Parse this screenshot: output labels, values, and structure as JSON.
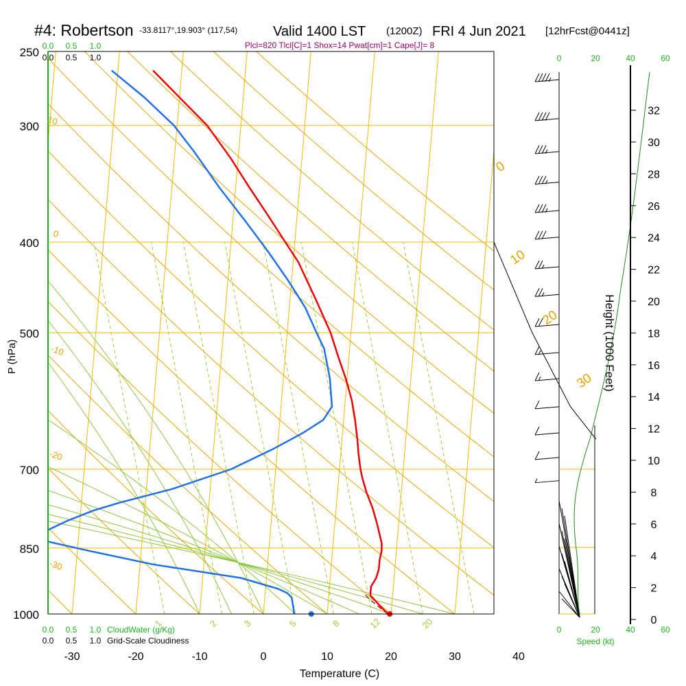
{
  "header": {
    "station": "#4: Robertson",
    "coords": "-33.8117°,19.903° (117,54)",
    "valid": "Valid 1400 LST",
    "z_time": "(1200Z)",
    "date": "FRI 4 Jun 2021",
    "forecast": "[12hrFcst@0441z]",
    "params": "Plcl=820 Tlcl[C]=1 Shox=14 Pwat[cm]=1 Cape[J]= 8"
  },
  "colors": {
    "isobar": "#f5b800",
    "dry_adiabat": "#e3a400",
    "moist_adiabat": "#8cc63f",
    "mixing_ratio": "#9acd32",
    "temperature": "#ee0000",
    "dewpoint": "#1e6fe8",
    "parcel": "#cc0000",
    "green_text": "#19b21a",
    "black": "#000000",
    "param_text": "#990066"
  },
  "chart_data": {
    "type": "line",
    "subtype": "skew-T log-P sounding",
    "xlabel": "Temperature (C)",
    "ylabel": "P (hPa)",
    "right_label": "Height (1000 Feet)",
    "x_ticks": [
      -30,
      -20,
      -10,
      0,
      10,
      20,
      30,
      40
    ],
    "p_ticks": [
      250,
      300,
      400,
      500,
      700,
      850,
      1000
    ],
    "height_ticks": [
      0,
      2,
      4,
      6,
      8,
      10,
      12,
      14,
      16,
      18,
      20,
      22,
      24,
      26,
      28,
      30,
      32
    ],
    "cloud_scale_top": [
      "0.0",
      "0.5",
      "1.0"
    ],
    "cloud_scale_bottom": [
      "0.0",
      "0.5",
      "1.0"
    ],
    "cloudwater_label": "CloudWater (g/Kg)",
    "cloudiness_label": "Grid-Scale Cloudiness",
    "speed_ticks": [
      "0",
      "20",
      "40",
      "60"
    ],
    "speed_label": "Speed (kt)",
    "dry_adiabat_labels": [
      "10",
      "0",
      "-10",
      "-20",
      "-30"
    ],
    "moist_adiabat_labels": [
      "0",
      "10",
      "20",
      "30"
    ],
    "mixing_ratio_labels": [
      "1",
      "2",
      "3",
      "5",
      "8",
      "12",
      "20"
    ],
    "series": [
      {
        "key": "temperature",
        "points": [
          [
            19.5,
            1000
          ],
          [
            18.5,
            985
          ],
          [
            17.5,
            970
          ],
          [
            16.5,
            955
          ],
          [
            16.5,
            935
          ],
          [
            17.2,
            915
          ],
          [
            17.5,
            895
          ],
          [
            17.5,
            875
          ],
          [
            17.7,
            855
          ],
          [
            17.6,
            840
          ],
          [
            17.1,
            820
          ],
          [
            16.6,
            800
          ],
          [
            15.7,
            770
          ],
          [
            14.5,
            740
          ],
          [
            13.7,
            715
          ],
          [
            13.3,
            700
          ],
          [
            12.8,
            675
          ],
          [
            12.4,
            650
          ],
          [
            11.8,
            620
          ],
          [
            11.0,
            590
          ],
          [
            9.8,
            560
          ],
          [
            8.3,
            530
          ],
          [
            6.8,
            500
          ],
          [
            4.0,
            460
          ],
          [
            0.8,
            420
          ],
          [
            -1.5,
            400
          ],
          [
            -4.5,
            375
          ],
          [
            -7.8,
            350
          ],
          [
            -11.2,
            325
          ],
          [
            -15.3,
            300
          ],
          [
            -20.0,
            280
          ],
          [
            -24.5,
            262
          ]
        ]
      },
      {
        "key": "dewpoint",
        "points": [
          [
            4.8,
            1000
          ],
          [
            4.7,
            990
          ],
          [
            4.2,
            960
          ],
          [
            3.5,
            950
          ],
          [
            2.0,
            940
          ],
          [
            -4.0,
            915
          ],
          [
            -18.0,
            885
          ],
          [
            -28.5,
            855
          ],
          [
            -37.0,
            830
          ],
          [
            -36.0,
            820
          ],
          [
            -32.0,
            795
          ],
          [
            -28.0,
            775
          ],
          [
            -24.0,
            760
          ],
          [
            -16.0,
            735
          ],
          [
            -7.0,
            700
          ],
          [
            -0.5,
            665
          ],
          [
            3.8,
            640
          ],
          [
            6.8,
            620
          ],
          [
            8.0,
            600
          ],
          [
            7.3,
            560
          ],
          [
            6.0,
            520
          ],
          [
            4.6,
            500
          ],
          [
            2.5,
            470
          ],
          [
            -0.5,
            440
          ],
          [
            -4.0,
            410
          ],
          [
            -8.0,
            380
          ],
          [
            -12.5,
            350
          ],
          [
            -17.0,
            320
          ],
          [
            -20.5,
            300
          ],
          [
            -25.5,
            280
          ],
          [
            -31.0,
            262
          ]
        ]
      },
      {
        "key": "parcel",
        "points": [
          [
            19.5,
            1000
          ],
          [
            18.2,
            985
          ],
          [
            16.5,
            965
          ],
          [
            15.3,
            948
          ]
        ]
      },
      {
        "key": "freezing_level",
        "points": [
          [
            36,
            250
          ],
          [
            36,
            400
          ],
          [
            42,
            500
          ],
          [
            48,
            600
          ],
          [
            52,
            650
          ]
        ]
      }
    ],
    "surface_markers": [
      {
        "key": "dewpoint",
        "t": 7.5,
        "p": 1000
      },
      {
        "key": "temperature",
        "t": 19.8,
        "p": 1000
      }
    ],
    "wind_barbs": [
      {
        "p": 268,
        "kt": 45
      },
      {
        "p": 295,
        "kt": 40
      },
      {
        "p": 320,
        "kt": 35
      },
      {
        "p": 345,
        "kt": 35
      },
      {
        "p": 370,
        "kt": 35
      },
      {
        "p": 395,
        "kt": 30
      },
      {
        "p": 425,
        "kt": 25
      },
      {
        "p": 455,
        "kt": 25
      },
      {
        "p": 490,
        "kt": 20
      },
      {
        "p": 525,
        "kt": 15
      },
      {
        "p": 560,
        "kt": 15
      },
      {
        "p": 600,
        "kt": 10
      },
      {
        "p": 640,
        "kt": 10
      },
      {
        "p": 680,
        "kt": 10
      },
      {
        "p": 720,
        "kt": 5
      }
    ]
  }
}
